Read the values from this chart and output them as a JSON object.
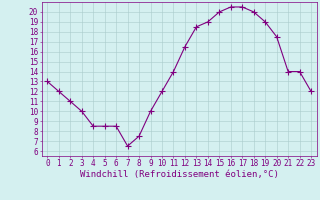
{
  "x": [
    0,
    1,
    2,
    3,
    4,
    5,
    6,
    7,
    8,
    9,
    10,
    11,
    12,
    13,
    14,
    15,
    16,
    17,
    18,
    19,
    20,
    21,
    22,
    23
  ],
  "y": [
    13,
    12,
    11,
    10,
    8.5,
    8.5,
    8.5,
    6.5,
    7.5,
    10,
    12,
    14,
    16.5,
    18.5,
    19,
    20,
    20.5,
    20.5,
    20,
    19,
    17.5,
    14,
    14,
    12
  ],
  "line_color": "#800080",
  "marker": "+",
  "marker_size": 4,
  "bg_color": "#d4f0f0",
  "grid_color": "#aacccc",
  "xlabel": "Windchill (Refroidissement éolien,°C)",
  "ylabel_ticks": [
    6,
    7,
    8,
    9,
    10,
    11,
    12,
    13,
    14,
    15,
    16,
    17,
    18,
    19,
    20
  ],
  "xlim": [
    -0.5,
    23.5
  ],
  "ylim": [
    5.5,
    21.0
  ],
  "xticks": [
    0,
    1,
    2,
    3,
    4,
    5,
    6,
    7,
    8,
    9,
    10,
    11,
    12,
    13,
    14,
    15,
    16,
    17,
    18,
    19,
    20,
    21,
    22,
    23
  ],
  "font_color": "#800080",
  "font_size": 5.5,
  "xlabel_font_size": 6.5,
  "lw": 0.8
}
